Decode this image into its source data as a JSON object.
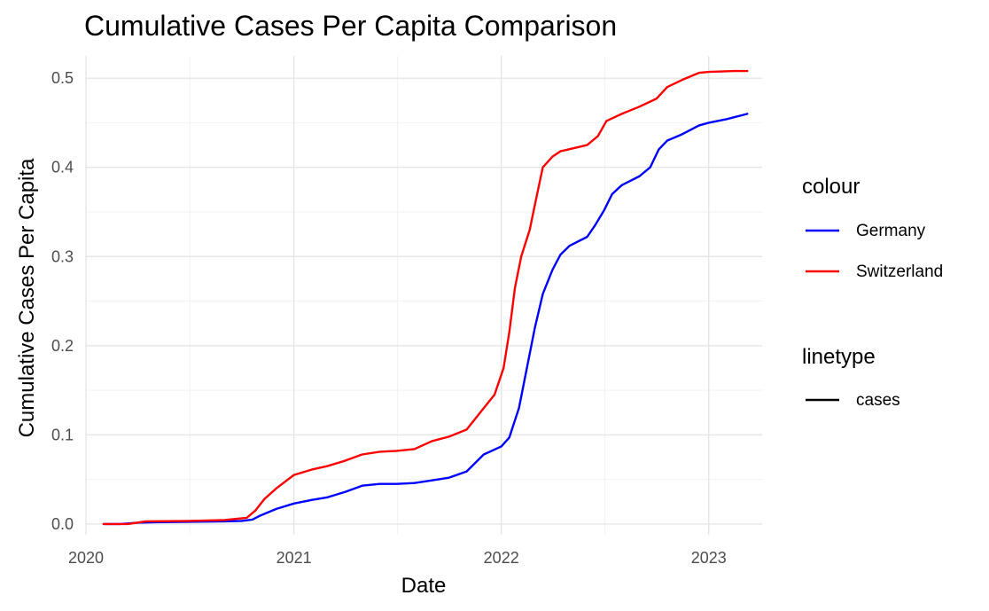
{
  "chart_data": {
    "type": "line",
    "title": "Cumulative Cases Per Capita Comparison",
    "xlabel": "Date",
    "ylabel": "Cumulative Cases Per Capita",
    "xlim": [
      "2020-01-01",
      "2023-04-05"
    ],
    "ylim": [
      -0.012,
      0.525
    ],
    "x_ticks": [
      "2020-01-01",
      "2021-01-01",
      "2022-01-01",
      "2023-01-01"
    ],
    "x_tick_labels": [
      "2020",
      "2021",
      "2022",
      "2023"
    ],
    "y_ticks": [
      0.0,
      0.1,
      0.2,
      0.3,
      0.4,
      0.5
    ],
    "y_tick_labels": [
      "0.0",
      "0.1",
      "0.2",
      "0.3",
      "0.4",
      "0.5"
    ],
    "grid": true,
    "legend_position": "right",
    "legends": [
      {
        "title": "colour",
        "entries": [
          {
            "label": "Germany",
            "color": "#0000ff"
          },
          {
            "label": "Switzerland",
            "color": "#ff0000"
          }
        ]
      },
      {
        "title": "linetype",
        "entries": [
          {
            "label": "cases",
            "color": "#000000"
          }
        ]
      }
    ],
    "series": [
      {
        "name": "Germany",
        "color": "#0000ff",
        "points": [
          [
            "2020-02-01",
            0.0
          ],
          [
            "2020-03-01",
            0.0
          ],
          [
            "2020-04-01",
            0.0015
          ],
          [
            "2020-05-01",
            0.002
          ],
          [
            "2020-07-01",
            0.0025
          ],
          [
            "2020-09-01",
            0.003
          ],
          [
            "2020-10-01",
            0.0035
          ],
          [
            "2020-10-20",
            0.005
          ],
          [
            "2020-11-01",
            0.009
          ],
          [
            "2020-12-01",
            0.017
          ],
          [
            "2021-01-01",
            0.023
          ],
          [
            "2021-02-01",
            0.027
          ],
          [
            "2021-03-01",
            0.03
          ],
          [
            "2021-04-01",
            0.036
          ],
          [
            "2021-05-01",
            0.043
          ],
          [
            "2021-06-01",
            0.045
          ],
          [
            "2021-07-01",
            0.045
          ],
          [
            "2021-08-01",
            0.046
          ],
          [
            "2021-09-01",
            0.049
          ],
          [
            "2021-10-01",
            0.052
          ],
          [
            "2021-11-01",
            0.059
          ],
          [
            "2021-12-01",
            0.078
          ],
          [
            "2022-01-01",
            0.087
          ],
          [
            "2022-01-15",
            0.097
          ],
          [
            "2022-02-01",
            0.13
          ],
          [
            "2022-02-15",
            0.175
          ],
          [
            "2022-03-01",
            0.22
          ],
          [
            "2022-03-15",
            0.258
          ],
          [
            "2022-04-01",
            0.285
          ],
          [
            "2022-04-15",
            0.302
          ],
          [
            "2022-05-01",
            0.312
          ],
          [
            "2022-06-01",
            0.322
          ],
          [
            "2022-06-15",
            0.335
          ],
          [
            "2022-07-01",
            0.352
          ],
          [
            "2022-07-15",
            0.37
          ],
          [
            "2022-08-01",
            0.38
          ],
          [
            "2022-09-01",
            0.39
          ],
          [
            "2022-09-20",
            0.4
          ],
          [
            "2022-10-05",
            0.42
          ],
          [
            "2022-10-20",
            0.43
          ],
          [
            "2022-11-15",
            0.437
          ],
          [
            "2022-12-15",
            0.447
          ],
          [
            "2023-01-01",
            0.45
          ],
          [
            "2023-02-01",
            0.454
          ],
          [
            "2023-03-10",
            0.46
          ]
        ]
      },
      {
        "name": "Switzerland",
        "color": "#ff0000",
        "points": [
          [
            "2020-02-01",
            0.0
          ],
          [
            "2020-03-15",
            0.0
          ],
          [
            "2020-04-15",
            0.003
          ],
          [
            "2020-07-01",
            0.0035
          ],
          [
            "2020-09-01",
            0.0045
          ],
          [
            "2020-10-10",
            0.007
          ],
          [
            "2020-10-25",
            0.015
          ],
          [
            "2020-11-10",
            0.028
          ],
          [
            "2020-12-01",
            0.04
          ],
          [
            "2021-01-01",
            0.055
          ],
          [
            "2021-02-01",
            0.061
          ],
          [
            "2021-03-01",
            0.065
          ],
          [
            "2021-04-01",
            0.071
          ],
          [
            "2021-05-01",
            0.078
          ],
          [
            "2021-06-01",
            0.081
          ],
          [
            "2021-07-01",
            0.082
          ],
          [
            "2021-08-01",
            0.084
          ],
          [
            "2021-09-01",
            0.093
          ],
          [
            "2021-10-01",
            0.098
          ],
          [
            "2021-11-01",
            0.106
          ],
          [
            "2021-12-01",
            0.13
          ],
          [
            "2021-12-20",
            0.145
          ],
          [
            "2022-01-05",
            0.175
          ],
          [
            "2022-01-15",
            0.215
          ],
          [
            "2022-01-25",
            0.265
          ],
          [
            "2022-02-05",
            0.3
          ],
          [
            "2022-02-20",
            0.33
          ],
          [
            "2022-03-05",
            0.37
          ],
          [
            "2022-03-15",
            0.4
          ],
          [
            "2022-04-01",
            0.412
          ],
          [
            "2022-04-15",
            0.418
          ],
          [
            "2022-06-01",
            0.425
          ],
          [
            "2022-06-20",
            0.435
          ],
          [
            "2022-07-05",
            0.452
          ],
          [
            "2022-08-01",
            0.46
          ],
          [
            "2022-09-01",
            0.468
          ],
          [
            "2022-10-01",
            0.477
          ],
          [
            "2022-10-20",
            0.49
          ],
          [
            "2022-11-15",
            0.498
          ],
          [
            "2022-12-15",
            0.506
          ],
          [
            "2023-01-01",
            0.507
          ],
          [
            "2023-02-15",
            0.508
          ],
          [
            "2023-03-10",
            0.508
          ]
        ]
      }
    ]
  }
}
